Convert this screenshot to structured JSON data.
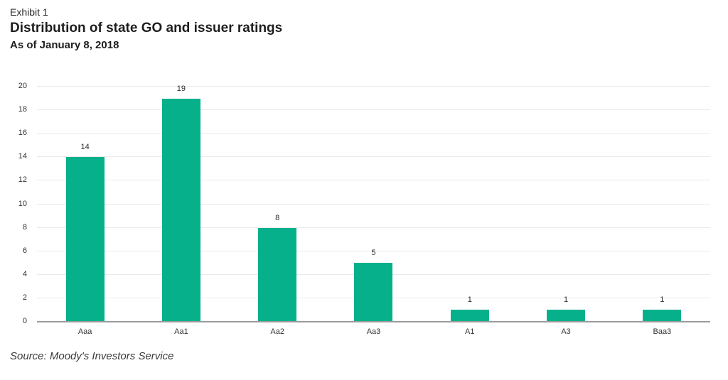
{
  "header": {
    "exhibit": "Exhibit 1",
    "title": "Distribution of state GO and issuer ratings",
    "subtitle": "As of January 8, 2018"
  },
  "footer": {
    "source": "Source: Moody's Investors Service"
  },
  "colors": {
    "bar": "#06b08b",
    "gridline": "#eaeaea",
    "baseline": "#9b9b9b",
    "title_text": "#1e1e1e",
    "axis_text": "#333333"
  },
  "chart_data": {
    "type": "bar",
    "categories": [
      "Aaa",
      "Aa1",
      "Aa2",
      "Aa3",
      "A1",
      "A3",
      "Baa3"
    ],
    "values": [
      14,
      19,
      8,
      5,
      1,
      1,
      1
    ],
    "title": "Distribution of state GO and issuer ratings",
    "subtitle": "As of January 8, 2018",
    "xlabel": "",
    "ylabel": "",
    "ylim": [
      0,
      20
    ],
    "ytick_step": 2,
    "grid": true,
    "legend": false,
    "value_labels": true
  }
}
